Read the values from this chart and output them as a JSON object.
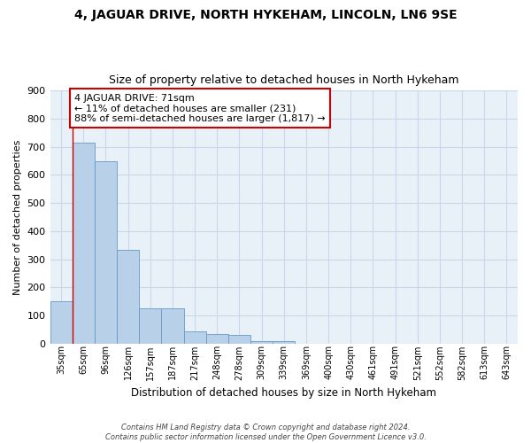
{
  "title": "4, JAGUAR DRIVE, NORTH HYKEHAM, LINCOLN, LN6 9SE",
  "subtitle": "Size of property relative to detached houses in North Hykeham",
  "xlabel": "Distribution of detached houses by size in North Hykeham",
  "ylabel": "Number of detached properties",
  "categories": [
    "35sqm",
    "65sqm",
    "96sqm",
    "126sqm",
    "157sqm",
    "187sqm",
    "217sqm",
    "248sqm",
    "278sqm",
    "309sqm",
    "339sqm",
    "369sqm",
    "400sqm",
    "430sqm",
    "461sqm",
    "491sqm",
    "521sqm",
    "552sqm",
    "582sqm",
    "613sqm",
    "643sqm"
  ],
  "values": [
    150,
    715,
    650,
    335,
    125,
    125,
    45,
    35,
    30,
    10,
    10,
    0,
    0,
    0,
    0,
    0,
    0,
    0,
    0,
    0,
    0
  ],
  "bar_color": "#b8d0e8",
  "bar_edge_color": "#6699cc",
  "grid_color": "#c8d8e8",
  "background_color": "#e8f0f8",
  "property_line_color": "#cc0000",
  "property_bin_index": 1,
  "annotation_text": "4 JAGUAR DRIVE: 71sqm\n← 11% of detached houses are smaller (231)\n88% of semi-detached houses are larger (1,817) →",
  "annotation_box_facecolor": "#ffffff",
  "annotation_border_color": "#cc0000",
  "footer_line1": "Contains HM Land Registry data © Crown copyright and database right 2024.",
  "footer_line2": "Contains public sector information licensed under the Open Government Licence v3.0.",
  "ylim": [
    0,
    900
  ],
  "yticks": [
    0,
    100,
    200,
    300,
    400,
    500,
    600,
    700,
    800,
    900
  ]
}
